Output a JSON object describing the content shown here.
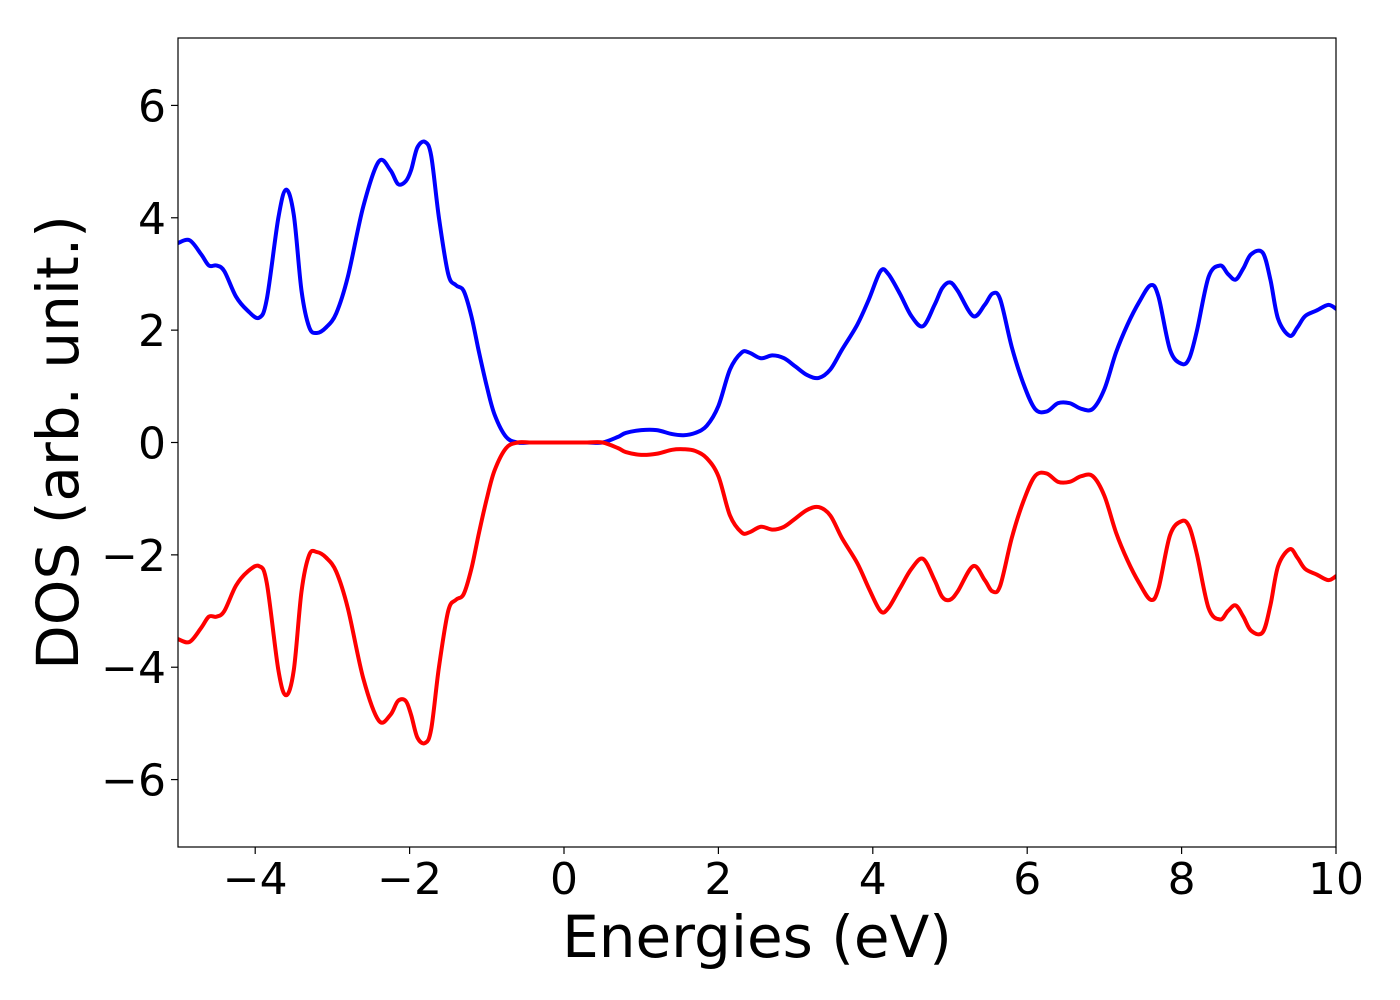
{
  "chart_data": {
    "type": "line",
    "title": "",
    "xlabel": "Energies (eV)",
    "ylabel": "DOS (arb. unit.)",
    "xlim": [
      -5,
      10
    ],
    "ylim": [
      -7.2,
      7.2
    ],
    "xticks": [
      -4,
      -2,
      0,
      2,
      4,
      6,
      8,
      10
    ],
    "yticks": [
      -6,
      -4,
      -2,
      0,
      2,
      4,
      6
    ],
    "xtick_labels": [
      "−4",
      "−2",
      "0",
      "2",
      "4",
      "6",
      "8",
      "10"
    ],
    "ytick_labels": [
      "−6",
      "−4",
      "−2",
      "0",
      "2",
      "4",
      "6"
    ],
    "grid": false,
    "legend": "none",
    "series": [
      {
        "color": "#0000ff",
        "x": [
          -5.0,
          -4.85,
          -4.7,
          -4.6,
          -4.5,
          -4.4,
          -4.25,
          -4.1,
          -3.95,
          -3.85,
          -3.7,
          -3.6,
          -3.5,
          -3.4,
          -3.3,
          -3.2,
          -3.08,
          -2.95,
          -2.8,
          -2.6,
          -2.4,
          -2.25,
          -2.15,
          -2.05,
          -1.98,
          -1.9,
          -1.8,
          -1.72,
          -1.62,
          -1.5,
          -1.4,
          -1.3,
          -1.2,
          -1.1,
          -1.0,
          -0.9,
          -0.75,
          -0.6,
          -0.45,
          -0.3,
          0.0,
          0.3,
          0.5,
          0.7,
          0.8,
          1.0,
          1.2,
          1.4,
          1.55,
          1.7,
          1.85,
          2.0,
          2.15,
          2.3,
          2.4,
          2.55,
          2.7,
          2.85,
          3.0,
          3.15,
          3.3,
          3.45,
          3.6,
          3.8,
          3.95,
          4.1,
          4.2,
          4.35,
          4.5,
          4.65,
          4.8,
          4.9,
          5.0,
          5.1,
          5.3,
          5.45,
          5.55,
          5.65,
          5.8,
          5.95,
          6.1,
          6.25,
          6.4,
          6.55,
          6.7,
          6.85,
          7.0,
          7.15,
          7.3,
          7.45,
          7.6,
          7.7,
          7.85,
          8.0,
          8.1,
          8.2,
          8.35,
          8.5,
          8.6,
          8.7,
          8.8,
          8.9,
          9.05,
          9.15,
          9.25,
          9.4,
          9.5,
          9.6,
          9.75,
          9.9,
          10.0
        ],
        "y": [
          3.55,
          3.6,
          3.35,
          3.15,
          3.15,
          3.05,
          2.6,
          2.35,
          2.22,
          2.55,
          4.0,
          4.5,
          4.05,
          2.7,
          2.05,
          1.95,
          2.05,
          2.3,
          2.95,
          4.2,
          5.0,
          4.85,
          4.6,
          4.65,
          4.85,
          5.25,
          5.35,
          5.1,
          4.0,
          3.0,
          2.8,
          2.7,
          2.25,
          1.6,
          1.0,
          0.5,
          0.1,
          0.0,
          0.0,
          0.0,
          0.0,
          0.0,
          0.0,
          0.1,
          0.17,
          0.22,
          0.22,
          0.15,
          0.13,
          0.17,
          0.3,
          0.65,
          1.3,
          1.6,
          1.6,
          1.5,
          1.55,
          1.5,
          1.35,
          1.2,
          1.15,
          1.3,
          1.65,
          2.1,
          2.55,
          3.05,
          3.0,
          2.65,
          2.25,
          2.07,
          2.45,
          2.75,
          2.85,
          2.7,
          2.25,
          2.45,
          2.65,
          2.55,
          1.7,
          1.05,
          0.6,
          0.55,
          0.7,
          0.7,
          0.6,
          0.6,
          0.95,
          1.6,
          2.1,
          2.5,
          2.8,
          2.6,
          1.65,
          1.4,
          1.5,
          2.0,
          2.95,
          3.15,
          3.0,
          2.9,
          3.1,
          3.35,
          3.38,
          2.9,
          2.2,
          1.9,
          2.05,
          2.25,
          2.35,
          2.45,
          2.38
        ]
      },
      {
        "color": "#ff0000",
        "x": [
          -5.0,
          -4.85,
          -4.7,
          -4.6,
          -4.5,
          -4.4,
          -4.25,
          -4.1,
          -3.95,
          -3.85,
          -3.7,
          -3.6,
          -3.5,
          -3.4,
          -3.3,
          -3.2,
          -3.08,
          -2.95,
          -2.8,
          -2.6,
          -2.4,
          -2.25,
          -2.15,
          -2.05,
          -1.98,
          -1.9,
          -1.8,
          -1.72,
          -1.62,
          -1.5,
          -1.4,
          -1.3,
          -1.2,
          -1.1,
          -1.0,
          -0.9,
          -0.75,
          -0.6,
          -0.45,
          -0.3,
          0.0,
          0.3,
          0.5,
          0.7,
          0.8,
          1.0,
          1.2,
          1.4,
          1.55,
          1.7,
          1.85,
          2.0,
          2.15,
          2.3,
          2.4,
          2.55,
          2.7,
          2.85,
          3.0,
          3.15,
          3.3,
          3.45,
          3.6,
          3.8,
          3.95,
          4.1,
          4.2,
          4.35,
          4.5,
          4.65,
          4.8,
          4.9,
          5.0,
          5.1,
          5.3,
          5.45,
          5.55,
          5.65,
          5.8,
          5.95,
          6.1,
          6.25,
          6.4,
          6.55,
          6.7,
          6.85,
          7.0,
          7.15,
          7.3,
          7.45,
          7.6,
          7.7,
          7.85,
          8.0,
          8.1,
          8.2,
          8.35,
          8.5,
          8.6,
          8.7,
          8.8,
          8.9,
          9.05,
          9.15,
          9.25,
          9.4,
          9.5,
          9.6,
          9.75,
          9.9,
          10.0
        ],
        "y": [
          -3.5,
          -3.55,
          -3.3,
          -3.1,
          -3.1,
          -3.0,
          -2.55,
          -2.3,
          -2.2,
          -2.5,
          -4.05,
          -4.5,
          -4.05,
          -2.65,
          -2.0,
          -1.95,
          -2.05,
          -2.3,
          -2.95,
          -4.2,
          -4.95,
          -4.85,
          -4.6,
          -4.6,
          -4.85,
          -5.25,
          -5.35,
          -5.1,
          -4.0,
          -3.0,
          -2.8,
          -2.7,
          -2.25,
          -1.6,
          -1.0,
          -0.5,
          -0.1,
          0.0,
          0.0,
          0.0,
          0.0,
          0.0,
          0.0,
          -0.1,
          -0.17,
          -0.22,
          -0.2,
          -0.13,
          -0.12,
          -0.15,
          -0.28,
          -0.6,
          -1.3,
          -1.6,
          -1.6,
          -1.5,
          -1.55,
          -1.5,
          -1.35,
          -1.2,
          -1.15,
          -1.3,
          -1.7,
          -2.15,
          -2.6,
          -3.0,
          -2.95,
          -2.6,
          -2.25,
          -2.07,
          -2.45,
          -2.75,
          -2.8,
          -2.65,
          -2.2,
          -2.45,
          -2.65,
          -2.55,
          -1.7,
          -1.05,
          -0.6,
          -0.55,
          -0.7,
          -0.7,
          -0.6,
          -0.6,
          -0.95,
          -1.6,
          -2.1,
          -2.5,
          -2.8,
          -2.6,
          -1.65,
          -1.4,
          -1.5,
          -2.0,
          -2.95,
          -3.15,
          -3.0,
          -2.9,
          -3.1,
          -3.35,
          -3.38,
          -2.9,
          -2.2,
          -1.9,
          -2.05,
          -2.25,
          -2.35,
          -2.45,
          -2.38
        ]
      }
    ]
  }
}
